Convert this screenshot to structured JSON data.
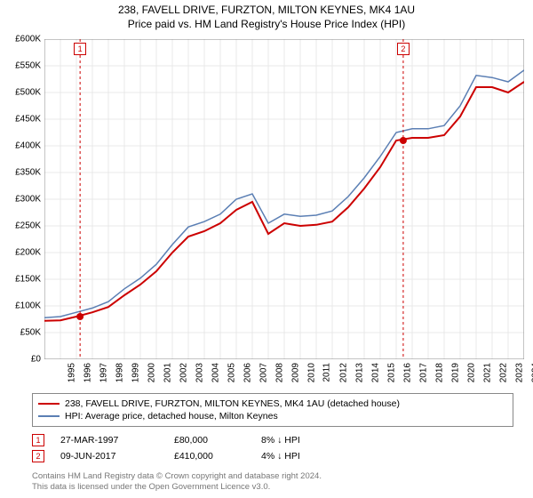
{
  "title_line1": "238, FAVELL DRIVE, FURZTON, MILTON KEYNES, MK4 1AU",
  "title_line2": "Price paid vs. HM Land Registry's House Price Index (HPI)",
  "chart": {
    "type": "line",
    "background_color": "#ffffff",
    "plot_border_color": "#888888",
    "grid_color": "#e8e8e8",
    "label_fontsize": 10,
    "title_fontsize": 12,
    "x": {
      "years": [
        1995,
        1996,
        1997,
        1998,
        1999,
        2000,
        2001,
        2002,
        2003,
        2004,
        2005,
        2006,
        2007,
        2008,
        2009,
        2010,
        2011,
        2012,
        2013,
        2014,
        2015,
        2016,
        2017,
        2018,
        2019,
        2020,
        2021,
        2022,
        2023,
        2024,
        2025
      ],
      "min": 1995,
      "max": 2025
    },
    "y": {
      "min": 0,
      "max": 600000,
      "step": 50000,
      "prefix": "£",
      "suffix": "K",
      "divisor": 1000
    },
    "series": [
      {
        "name": "238, FAVELL DRIVE, FURZTON, MILTON KEYNES, MK4 1AU (detached house)",
        "color": "#cc0000",
        "line_width": 2,
        "values_by_year": {
          "1995": 72000,
          "1996": 73000,
          "1997": 80000,
          "1998": 88000,
          "1999": 98000,
          "2000": 120000,
          "2001": 140000,
          "2002": 165000,
          "2003": 200000,
          "2004": 230000,
          "2005": 240000,
          "2006": 255000,
          "2007": 280000,
          "2008": 295000,
          "2009": 235000,
          "2010": 255000,
          "2011": 250000,
          "2012": 252000,
          "2013": 258000,
          "2014": 285000,
          "2015": 320000,
          "2016": 360000,
          "2017": 410000,
          "2018": 415000,
          "2019": 415000,
          "2020": 420000,
          "2021": 455000,
          "2022": 510000,
          "2023": 510000,
          "2024": 500000,
          "2025": 520000
        }
      },
      {
        "name": "HPI: Average price, detached house, Milton Keynes",
        "color": "#5b7fb4",
        "line_width": 1.5,
        "values_by_year": {
          "1995": 78000,
          "1996": 80000,
          "1997": 88000,
          "1998": 96000,
          "1999": 108000,
          "2000": 132000,
          "2001": 152000,
          "2002": 178000,
          "2003": 215000,
          "2004": 248000,
          "2005": 258000,
          "2006": 272000,
          "2007": 300000,
          "2008": 310000,
          "2009": 255000,
          "2010": 272000,
          "2011": 268000,
          "2012": 270000,
          "2013": 278000,
          "2014": 305000,
          "2015": 340000,
          "2016": 380000,
          "2017": 425000,
          "2018": 432000,
          "2019": 432000,
          "2020": 438000,
          "2021": 475000,
          "2022": 532000,
          "2023": 528000,
          "2024": 520000,
          "2025": 542000
        }
      }
    ],
    "markers": [
      {
        "label": "1",
        "year": 1997.23,
        "price": 80000,
        "color": "#cc0000",
        "vline_dash": "3,3"
      },
      {
        "label": "2",
        "year": 2017.44,
        "price": 410000,
        "color": "#cc0000",
        "vline_dash": "3,3"
      }
    ]
  },
  "legend": [
    {
      "color": "#cc0000",
      "text": "238, FAVELL DRIVE, FURZTON, MILTON KEYNES, MK4 1AU (detached house)"
    },
    {
      "color": "#5b7fb4",
      "text": "HPI: Average price, detached house, Milton Keynes"
    }
  ],
  "events": [
    {
      "num": "1",
      "date": "27-MAR-1997",
      "price": "£80,000",
      "hpi": "8% ↓ HPI"
    },
    {
      "num": "2",
      "date": "09-JUN-2017",
      "price": "£410,000",
      "hpi": "4% ↓ HPI"
    }
  ],
  "footer_line1": "Contains HM Land Registry data © Crown copyright and database right 2024.",
  "footer_line2": "This data is licensed under the Open Government Licence v3.0."
}
